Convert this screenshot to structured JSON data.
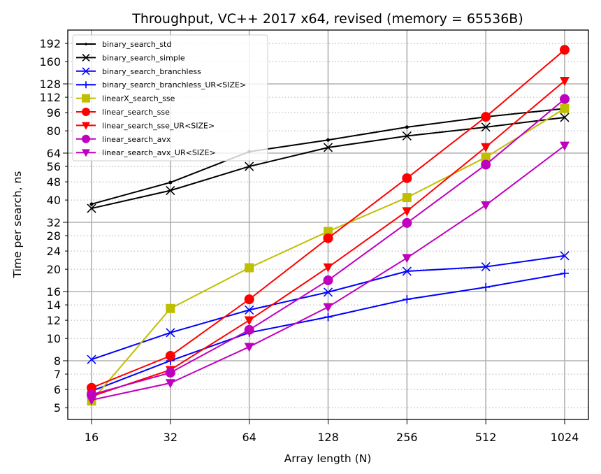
{
  "chart_data": {
    "type": "line",
    "title": "Throughput, VC++ 2017 x64, revised (memory = 65536B)",
    "xlabel": "Array length (N)",
    "ylabel": "Time per search, ns",
    "xscale": "log2",
    "yscale": "log2",
    "x": [
      16,
      32,
      64,
      128,
      256,
      512,
      1024
    ],
    "x_tick_labels": [
      "16",
      "32",
      "64",
      "128",
      "256",
      "512",
      "1024"
    ],
    "y_major_ticks": [
      8,
      16,
      32,
      64,
      128
    ],
    "y_tick_labels": [
      "5",
      "6",
      "7",
      "8",
      "10",
      "12",
      "14",
      "16",
      "20",
      "24",
      "28",
      "32",
      "40",
      "48",
      "56",
      "64",
      "80",
      "96",
      "112",
      "128",
      "160",
      "192"
    ],
    "y_tick_values": [
      5,
      6,
      7,
      8,
      10,
      12,
      14,
      16,
      20,
      24,
      28,
      32,
      40,
      48,
      56,
      64,
      80,
      96,
      112,
      128,
      160,
      192
    ],
    "xlim": [
      13.5,
      1200
    ],
    "ylim": [
      4.4,
      218
    ],
    "grid": true,
    "legend_position": "top-left",
    "series": [
      {
        "name": "binary_search_std",
        "color": "#000000",
        "marker": "point",
        "values": [
          38.4,
          47.7,
          64.9,
          73,
          83,
          92,
          100
        ]
      },
      {
        "name": "binary_search_simple",
        "color": "#000000",
        "marker": "x",
        "values": [
          36.8,
          44,
          56,
          67.7,
          76,
          83,
          91.5
        ]
      },
      {
        "name": "binary_search_branchless",
        "color": "#0000ff",
        "marker": "x",
        "values": [
          8.1,
          10.6,
          13.3,
          15.9,
          19.6,
          20.5,
          22.9
        ]
      },
      {
        "name": "binary_search_branchless_UR<SIZE>",
        "color": "#0000ff",
        "marker": "plus",
        "values": [
          5.9,
          8.0,
          10.6,
          12.4,
          14.8,
          16.7,
          19.2
        ]
      },
      {
        "name": "linearX_search_sse",
        "color": "#bfbf00",
        "marker": "square",
        "values": [
          5.35,
          13.5,
          20.3,
          29.2,
          41,
          61.4,
          100
        ]
      },
      {
        "name": "linear_search_sse",
        "color": "#ff0000",
        "marker": "circle",
        "values": [
          6.1,
          8.4,
          14.8,
          27.3,
          49.8,
          92,
          180
        ]
      },
      {
        "name": "linear_search_sse_UR<SIZE>",
        "color": "#ff0000",
        "marker": "triangle-down",
        "values": [
          5.6,
          7.3,
          12.0,
          20.4,
          35.8,
          68,
          132
        ]
      },
      {
        "name": "linear_search_avx",
        "color": "#bf00bf",
        "marker": "circle",
        "values": [
          5.7,
          7.1,
          10.9,
          17.9,
          31.8,
          57,
          110
        ]
      },
      {
        "name": "linear_search_avx_UR<SIZE>",
        "color": "#bf00bf",
        "marker": "triangle-down",
        "values": [
          5.4,
          6.4,
          9.2,
          13.7,
          22.4,
          38,
          69
        ]
      }
    ]
  }
}
